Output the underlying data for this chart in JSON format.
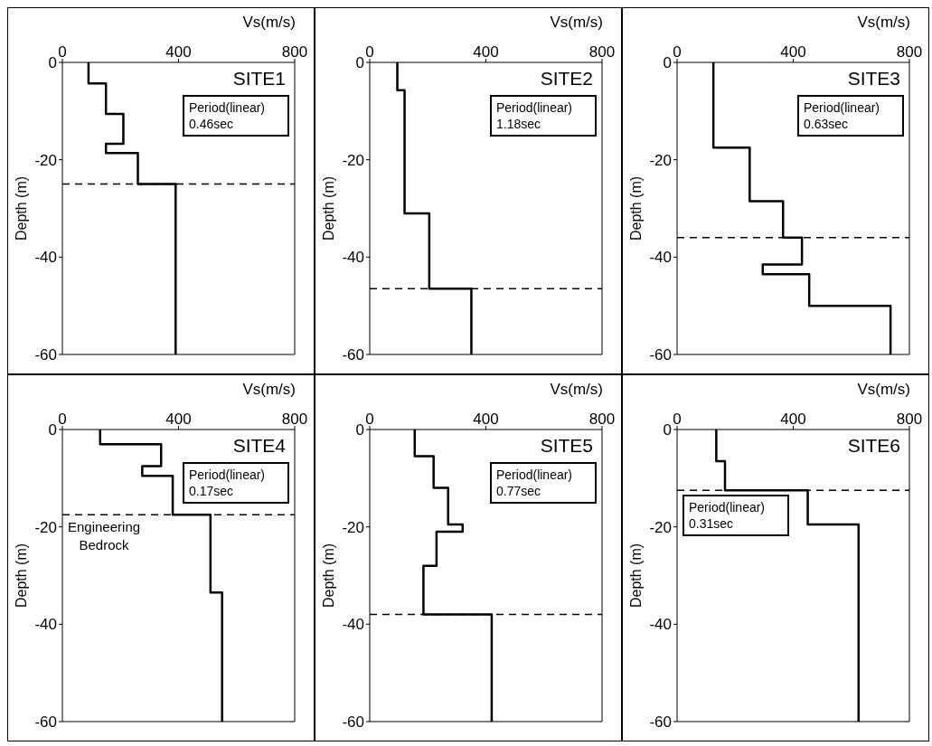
{
  "chart_data": [
    {
      "type": "line",
      "title": "SITE1",
      "xlabel": "Vs(m/s)",
      "ylabel": "Depth (m)",
      "xlim": [
        0,
        800
      ],
      "xticks": [
        0,
        400,
        800
      ],
      "ylim": [
        -60,
        0
      ],
      "yticks": [
        -60,
        -40,
        -20,
        0
      ],
      "color": "#000000",
      "x": [
        90,
        90,
        150,
        150,
        210,
        210,
        150,
        150,
        260,
        260,
        390,
        390
      ],
      "values": [
        0,
        -4.3,
        -4.3,
        -10.6,
        -10.6,
        -16.7,
        -16.7,
        -18.6,
        -18.6,
        -25,
        -25,
        -60
      ],
      "ref_lines": [
        {
          "axis": "y",
          "value": -25,
          "line_style": "dashed"
        }
      ],
      "annotations": [
        "Period(linear)\n0.46sec"
      ]
    },
    {
      "type": "line",
      "title": "SITE2",
      "xlabel": "Vs(m/s)",
      "ylabel": "Depth (m)",
      "xlim": [
        0,
        800
      ],
      "xticks": [
        0,
        400,
        800
      ],
      "ylim": [
        -60,
        0
      ],
      "yticks": [
        -60,
        -40,
        -20,
        0
      ],
      "color": "#000000",
      "x": [
        95,
        95,
        120,
        120,
        205,
        205,
        350,
        350
      ],
      "values": [
        0,
        -5.7,
        -5.7,
        -31,
        -31,
        -46.5,
        -46.5,
        -60
      ],
      "ref_lines": [
        {
          "axis": "y",
          "value": -46.5,
          "line_style": "dashed"
        }
      ],
      "annotations": [
        "Period(linear)\n1.18sec"
      ]
    },
    {
      "type": "line",
      "title": "SITE3",
      "xlabel": "Vs(m/s)",
      "ylabel": "Depth (m)",
      "xlim": [
        0,
        800
      ],
      "xticks": [
        0,
        400,
        800
      ],
      "ylim": [
        -60,
        0
      ],
      "yticks": [
        -60,
        -40,
        -20,
        0
      ],
      "color": "#000000",
      "x": [
        125,
        125,
        250,
        250,
        365,
        365,
        430,
        430,
        295,
        295,
        455,
        455,
        735,
        735
      ],
      "values": [
        0,
        -17.5,
        -17.5,
        -28.5,
        -28.5,
        -36,
        -36,
        -41.5,
        -41.5,
        -43.5,
        -43.5,
        -50,
        -50,
        -60
      ],
      "ref_lines": [
        {
          "axis": "y",
          "value": -36,
          "line_style": "dashed"
        }
      ],
      "annotations": [
        "Period(linear)\n0.63sec"
      ]
    },
    {
      "type": "line",
      "title": "SITE4",
      "xlabel": "Vs(m/s)",
      "ylabel": "Depth (m)",
      "xlim": [
        0,
        800
      ],
      "xticks": [
        0,
        400,
        800
      ],
      "ylim": [
        -60,
        0
      ],
      "yticks": [
        -60,
        -40,
        -20,
        0
      ],
      "color": "#000000",
      "x": [
        130,
        130,
        340,
        340,
        275,
        275,
        380,
        380,
        510,
        510,
        550,
        550
      ],
      "values": [
        0,
        -3,
        -3,
        -7.5,
        -7.5,
        -9.5,
        -9.5,
        -17.5,
        -17.5,
        -33.5,
        -33.5,
        -60
      ],
      "ref_lines": [
        {
          "axis": "y",
          "value": -17.5,
          "line_style": "dashed",
          "label": "Engineering\nBedrock"
        }
      ],
      "annotations": [
        "Period(linear)\n0.17sec"
      ]
    },
    {
      "type": "line",
      "title": "SITE5",
      "xlabel": "Vs(m/s)",
      "ylabel": "Depth (m)",
      "xlim": [
        0,
        800
      ],
      "xticks": [
        0,
        400,
        800
      ],
      "ylim": [
        -60,
        0
      ],
      "yticks": [
        -60,
        -40,
        -20,
        0
      ],
      "color": "#000000",
      "x": [
        155,
        155,
        220,
        220,
        270,
        270,
        320,
        320,
        230,
        230,
        185,
        185,
        420,
        420
      ],
      "values": [
        0,
        -5.5,
        -5.5,
        -12,
        -12,
        -19.5,
        -19.5,
        -21,
        -21,
        -28,
        -28,
        -38,
        -38,
        -60
      ],
      "ref_lines": [
        {
          "axis": "y",
          "value": -38,
          "line_style": "dashed"
        }
      ],
      "annotations": [
        "Period(linear)\n0.77sec"
      ]
    },
    {
      "type": "line",
      "title": "SITE6",
      "xlabel": "Vs(m/s)",
      "ylabel": "Depth (m)",
      "xlim": [
        0,
        800
      ],
      "xticks": [
        0,
        400,
        800
      ],
      "ylim": [
        -60,
        0
      ],
      "yticks": [
        -60,
        -40,
        -20,
        0
      ],
      "color": "#000000",
      "x": [
        135,
        135,
        165,
        165,
        450,
        450,
        625,
        625
      ],
      "values": [
        0,
        -6.5,
        -6.5,
        -12.5,
        -12.5,
        -19.5,
        -19.5,
        -60
      ],
      "ref_lines": [
        {
          "axis": "y",
          "value": -12.5,
          "line_style": "dashed"
        }
      ],
      "annotations": [
        "Period(linear)\n0.31sec"
      ]
    }
  ]
}
